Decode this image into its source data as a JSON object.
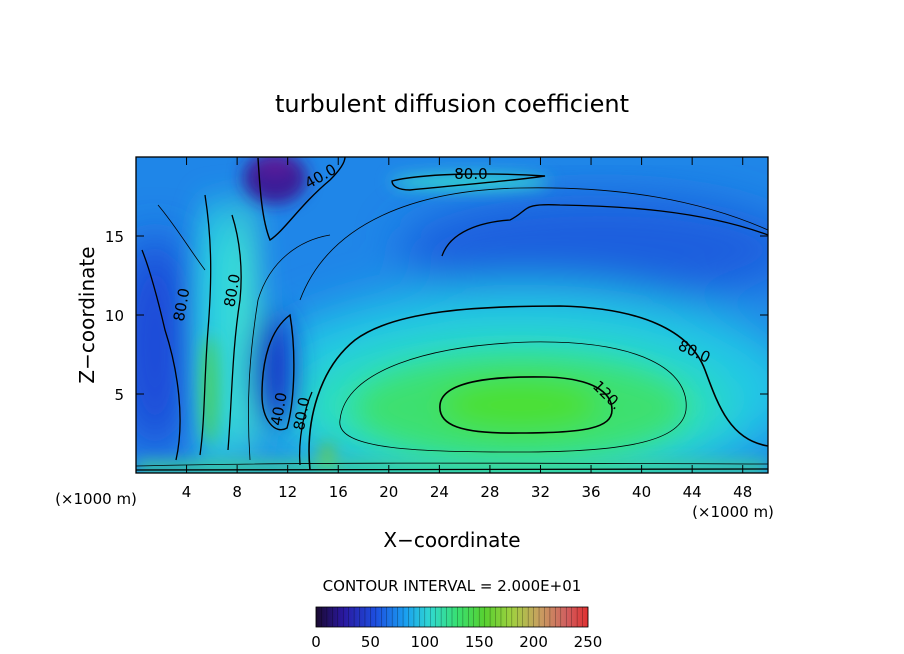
{
  "chart_data": {
    "type": "heatmap",
    "title": "turbulent diffusion coefficient",
    "xlabel": "X−coordinate",
    "ylabel": "Z−coordinate",
    "x_unit": "(×1000 m)",
    "z_unit": "(×1000 m)",
    "xlim": [
      0,
      50
    ],
    "ylim": [
      0,
      20
    ],
    "x_ticks": [
      4,
      8,
      12,
      16,
      20,
      24,
      28,
      32,
      36,
      40,
      44,
      48
    ],
    "y_ticks": [
      5,
      10,
      15
    ],
    "contour_interval_text": "CONTOUR INTERVAL = 2.000E+01",
    "colorbar": {
      "min": 0,
      "max": 250,
      "ticks": [
        0,
        50,
        100,
        150,
        200,
        250
      ]
    },
    "contour_labels": [
      {
        "text": "40.0",
        "x": 14.8,
        "z": 18.5
      },
      {
        "text": "80.0",
        "x": 26.5,
        "z": 18.6
      },
      {
        "text": "80.0",
        "x": 4.0,
        "z": 10.6
      },
      {
        "text": "80.0",
        "x": 8.0,
        "z": 11.5
      },
      {
        "text": "80.0",
        "x": 44.0,
        "z": 7.4
      },
      {
        "text": "120.",
        "x": 37.0,
        "z": 4.7
      },
      {
        "text": "40.0",
        "x": 11.7,
        "z": 4.0
      },
      {
        "text": "80.0",
        "x": 13.5,
        "z": 3.7
      }
    ]
  }
}
